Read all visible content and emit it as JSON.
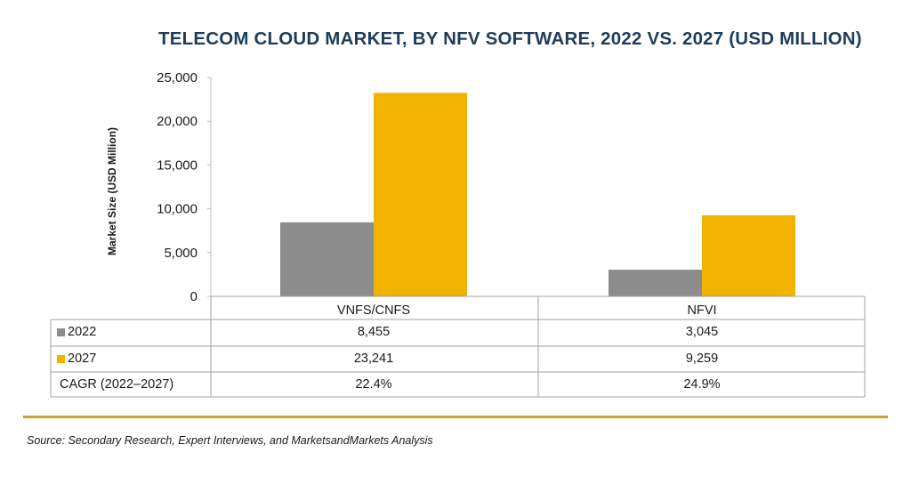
{
  "chart_data": {
    "type": "bar",
    "title": "TELECOM CLOUD MARKET, BY NFV SOFTWARE, 2022 VS. 2027 (USD MILLION)",
    "ylabel": "Market Size (USD Million)",
    "xlabel": "",
    "categories": [
      "VNFS/CNFS",
      "NFVI"
    ],
    "series": [
      {
        "name": "2022",
        "values": [
          8455,
          3045
        ],
        "labels": [
          "8,455",
          "3,045"
        ],
        "color": "#8c8c8c"
      },
      {
        "name": "2027",
        "values": [
          23241,
          9259
        ],
        "labels": [
          "23,241",
          "9,259"
        ],
        "color": "#f0b400"
      }
    ],
    "ylim": [
      0,
      25000
    ],
    "yticks": [
      0,
      5000,
      10000,
      15000,
      20000,
      25000
    ],
    "ytick_labels": [
      "0",
      "5,000",
      "10,000",
      "15,000",
      "20,000",
      "25,000"
    ],
    "grid": false,
    "legend": "data-table",
    "cagr": {
      "label": "CAGR (2022–2027)",
      "values": [
        "22.4%",
        "24.9%"
      ]
    }
  },
  "source": "Source: Secondary Research, Expert Interviews, and MarketsandMarkets Analysis"
}
